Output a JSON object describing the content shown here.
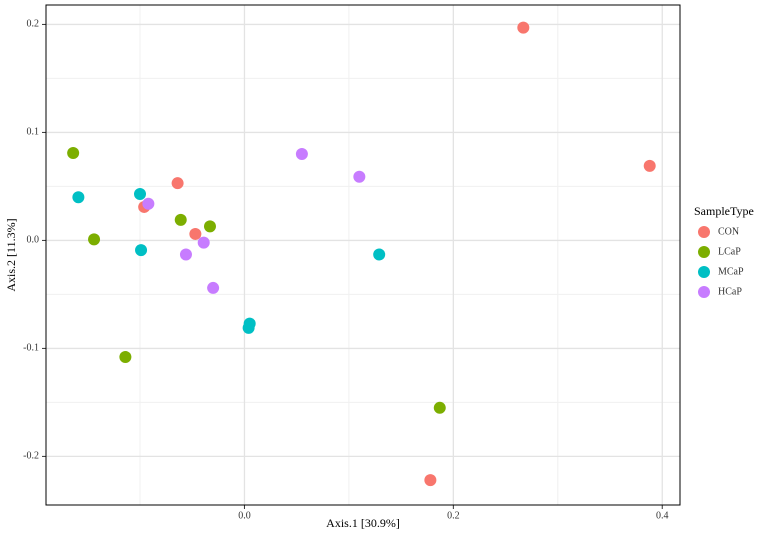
{
  "chart_data": {
    "type": "scatter",
    "xlabel": "Axis.1  [30.9%]",
    "ylabel": "Axis.2  [11.3%]",
    "legend_title": "SampleType",
    "legend_position": "right",
    "grid": true,
    "xlim": [
      -0.19,
      0.417
    ],
    "ylim": [
      -0.245,
      0.218
    ],
    "xticks": [
      {
        "value": 0,
        "label": "0.0"
      },
      0.2,
      0.4
    ],
    "yticks": [
      -0.2,
      -0.1,
      {
        "value": 0,
        "label": "0.0"
      },
      0.1,
      0.2
    ],
    "series": [
      {
        "name": "CON",
        "color": "#F8766D",
        "x": [
          0.267,
          0.388,
          -0.064,
          -0.096,
          -0.047,
          0.178
        ],
        "values": [
          0.197,
          0.069,
          0.053,
          0.031,
          0.006,
          -0.222
        ]
      },
      {
        "name": "LCaP",
        "color": "#7CAE00",
        "x": [
          -0.164,
          -0.144,
          -0.061,
          -0.033,
          -0.114,
          0.187
        ],
        "values": [
          0.081,
          0.001,
          0.019,
          0.013,
          -0.108,
          -0.155
        ]
      },
      {
        "name": "MCaP",
        "color": "#00BFC4",
        "x": [
          -0.159,
          -0.1,
          -0.099,
          0.005,
          0.004,
          0.129
        ],
        "values": [
          0.04,
          0.043,
          -0.009,
          -0.077,
          -0.081,
          -0.013
        ]
      },
      {
        "name": "HCaP",
        "color": "#C77CFF",
        "x": [
          -0.092,
          0.055,
          0.11,
          -0.039,
          -0.056,
          -0.03
        ],
        "values": [
          0.034,
          0.08,
          0.059,
          -0.002,
          -0.013,
          -0.044
        ]
      }
    ]
  }
}
